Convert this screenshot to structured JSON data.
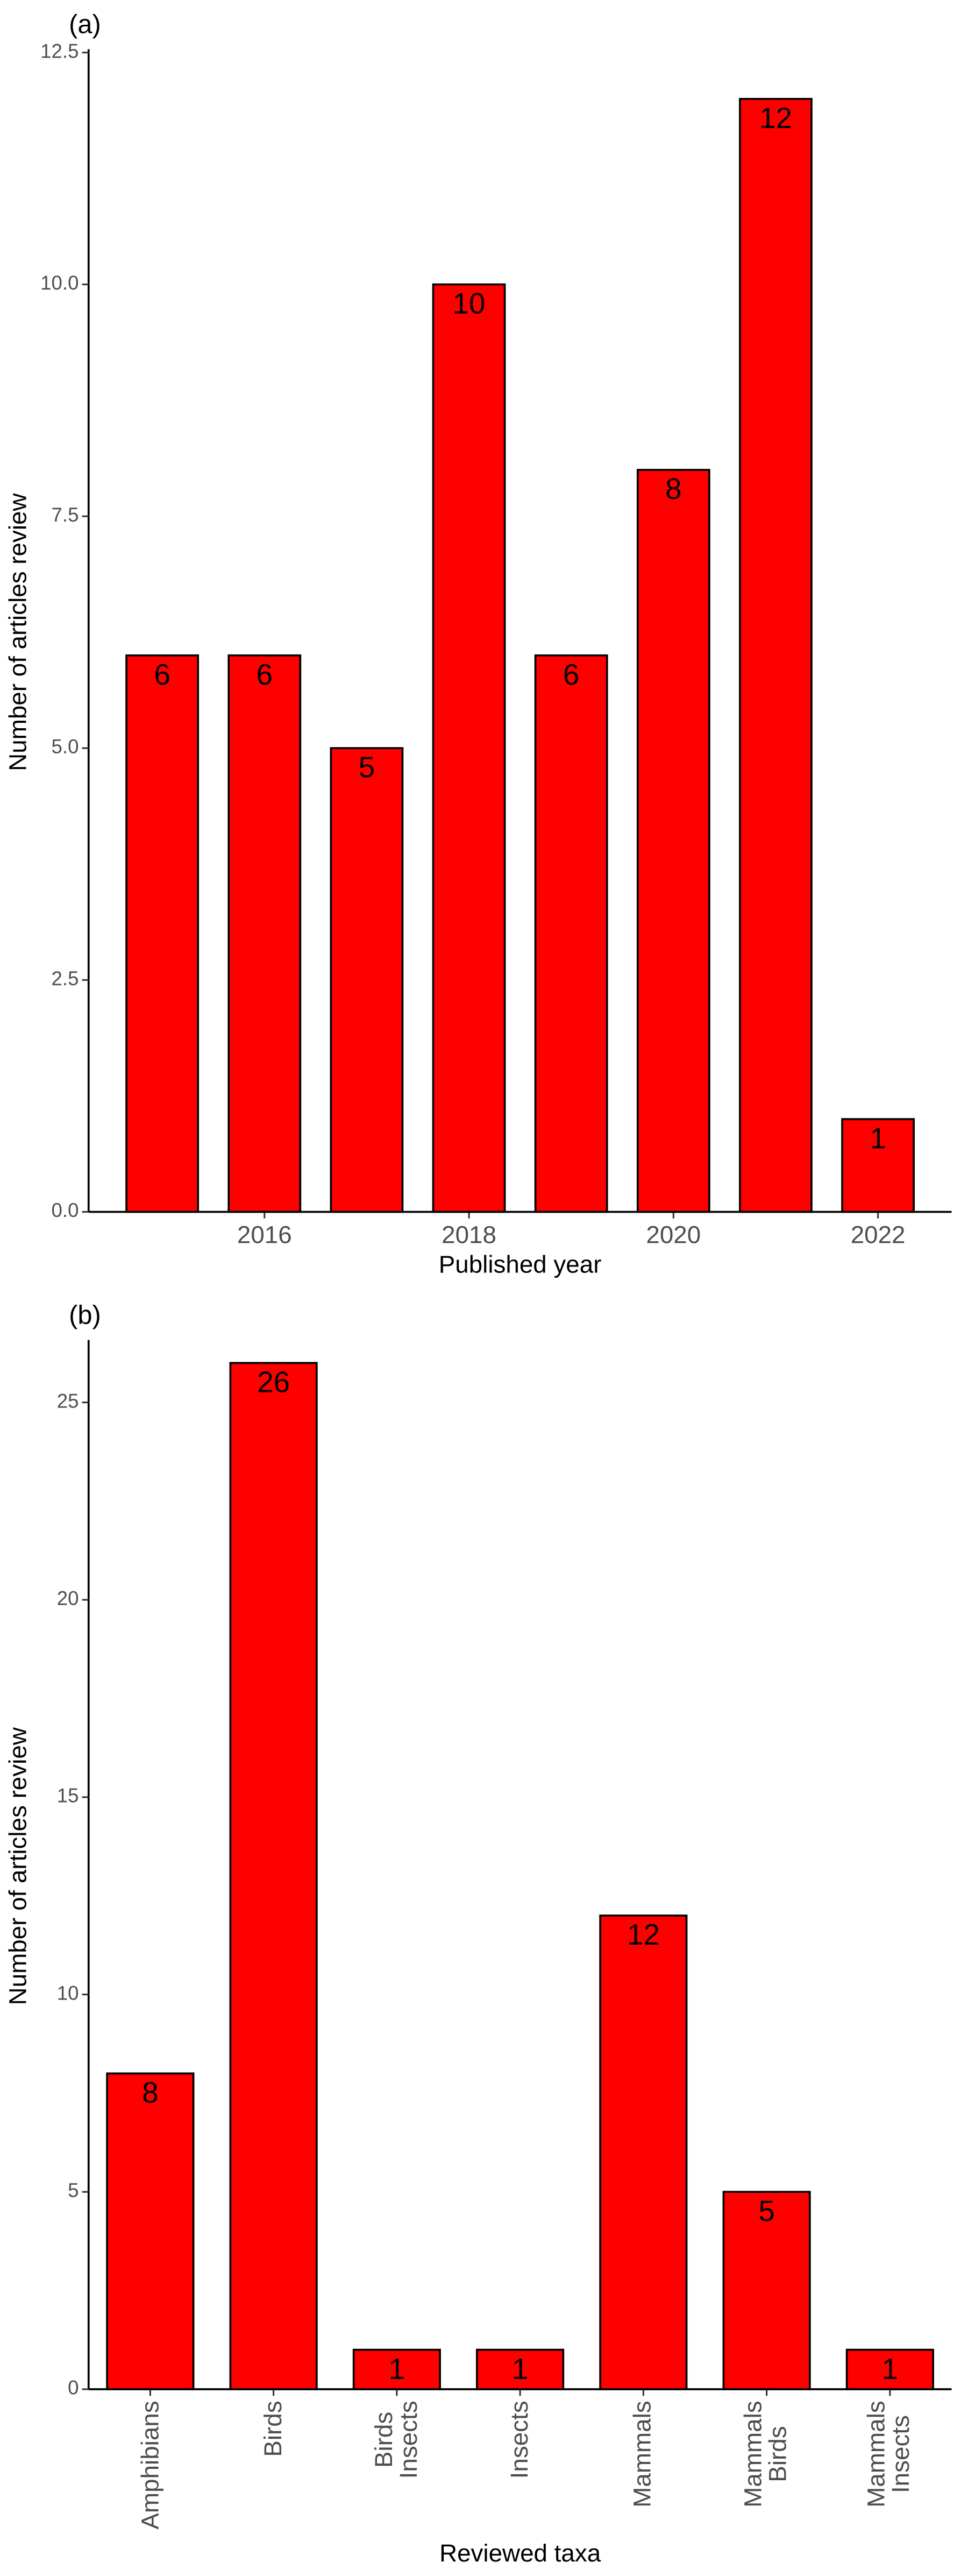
{
  "chart_data": [
    {
      "type": "bar",
      "tag": "(a)",
      "x_label": "Published year",
      "y_label": "Number of articles review",
      "x": [
        2015,
        2016,
        2017,
        2018,
        2019,
        2020,
        2021,
        2022
      ],
      "values": [
        6,
        6,
        5,
        10,
        6,
        8,
        12,
        1
      ],
      "color": "#ff0000",
      "xlim": [
        2014.28,
        2022.72
      ],
      "xticks": [
        2016,
        2018,
        2020,
        2022
      ],
      "ylim": [
        0,
        12.5
      ],
      "yticks": [
        {
          "value": 0,
          "label": "0.0"
        },
        2.5,
        {
          "value": 5,
          "label": "5.0"
        },
        7.5,
        {
          "value": 10,
          "label": "10.0"
        },
        12.5
      ]
    },
    {
      "type": "bar",
      "tag": "(b)",
      "x_label": "Reviewed taxa",
      "y_label": "Number of articles review",
      "categories": [
        "Amphibians",
        "Birds",
        "Birds\nInsects",
        "Insects",
        "Mammals",
        "Mammals\nBirds",
        "Mammals\nInsects"
      ],
      "values": [
        8,
        26,
        1,
        1,
        12,
        5,
        1
      ],
      "color": "#ff0000",
      "ylim": [
        0,
        26.5
      ],
      "yticks": [
        0,
        5,
        10,
        15,
        20,
        25
      ]
    }
  ]
}
